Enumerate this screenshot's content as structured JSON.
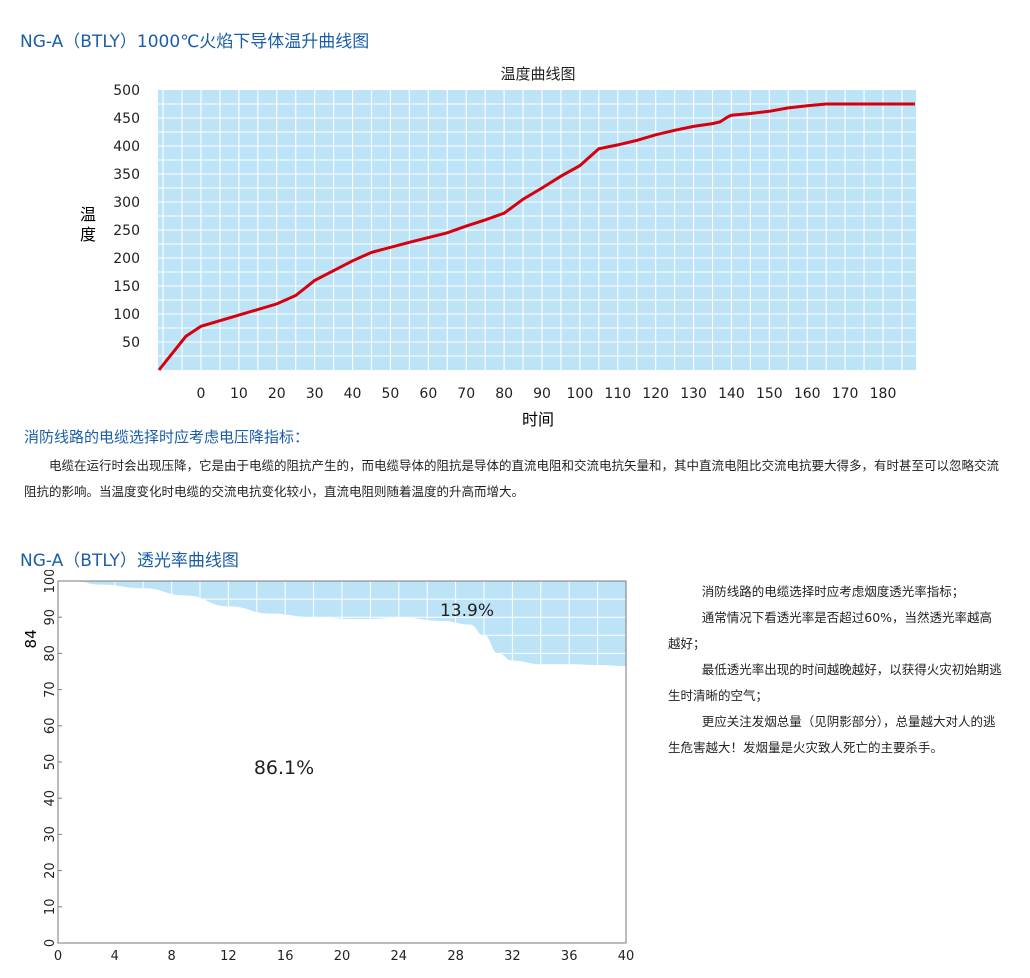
{
  "titles": {
    "fig1": "NG-A（BTLY）1000℃火焰下导体温升曲线图",
    "fig2": "NG-A（BTLY）透光率曲线图",
    "section1": "消防线路的电缆选择时应考虑电压降指标："
  },
  "paragraph1": "电缆在运行时会出现压降，它是由于电缆的阻抗产生的，而电缆导体的阻抗是导体的直流电阻和交流电抗矢量和，其中直流电阻比交流电抗要大得多，有时甚至可以忽略交流阻抗的影响。当温度变化时电缆的交流电抗变化较小，直流电阻则随着温度的升高而增大。",
  "side_text": [
    "消防线路的电缆选择时应考虑烟度透光率指标；",
    "通常情况下看透光率是否超过60%，当然透光率越高越好；",
    "最低透光率出现的时间越晚越好，以获得火灾初始期逃生时清晰的空气；",
    "更应关注发烟总量（见阴影部分），总量越大对人的逃生危害越大！发烟量是火灾致人死亡的主要杀手。"
  ],
  "colors": {
    "title_blue": "#1a5ea8",
    "plot_fill": "#bde3f7",
    "curve_red": "#d7000f",
    "grid_white": "#ffffff"
  },
  "chart_data": [
    {
      "type": "line",
      "title": "温度曲线图",
      "xlabel": "时间",
      "ylabel": "温度",
      "x_ticks": [
        0,
        10,
        20,
        30,
        40,
        50,
        60,
        70,
        80,
        90,
        100,
        110,
        120,
        130,
        140,
        150,
        160,
        170,
        180
      ],
      "y_ticks": [
        50,
        100,
        150,
        200,
        250,
        300,
        350,
        400,
        450,
        500
      ],
      "xlim": [
        -12,
        190
      ],
      "ylim": [
        0,
        500
      ],
      "grid": true,
      "series": [
        {
          "x": [
            -12,
            -4,
            0,
            10,
            20,
            25,
            30,
            40,
            45,
            55,
            65,
            70,
            75,
            80,
            85,
            90,
            95,
            100,
            105,
            110,
            115,
            120,
            125,
            130,
            135,
            137,
            139,
            140,
            145,
            150,
            155,
            160,
            165,
            170,
            180,
            190
          ],
          "y": [
            0,
            60,
            78,
            98,
            118,
            133,
            160,
            195,
            210,
            228,
            245,
            257,
            268,
            280,
            305,
            325,
            346,
            365,
            395,
            402,
            410,
            420,
            428,
            435,
            440,
            443,
            452,
            455,
            458,
            462,
            468,
            472,
            475,
            475,
            475,
            475
          ]
        }
      ]
    },
    {
      "type": "area",
      "x_ticks": [
        0,
        4,
        8,
        12,
        16,
        20,
        24,
        28,
        32,
        36,
        40
      ],
      "y_ticks": [
        0,
        10,
        20,
        30,
        40,
        50,
        60,
        70,
        80,
        90,
        100
      ],
      "xlim": [
        0,
        40
      ],
      "ylim": [
        0,
        100
      ],
      "y_marker": 84,
      "grid": true,
      "series": [
        {
          "x": [
            0,
            1,
            3,
            6,
            9,
            12,
            15,
            18,
            21,
            22,
            24,
            27,
            29,
            30,
            31,
            32,
            34,
            36,
            38,
            40
          ],
          "y": [
            100,
            100,
            99,
            98,
            96,
            93,
            91,
            90,
            89.5,
            89.5,
            90,
            89,
            88,
            85,
            80,
            78,
            77,
            77,
            76.8,
            76.5
          ]
        }
      ],
      "annotations": [
        "13.9%",
        "86.1%"
      ]
    }
  ]
}
